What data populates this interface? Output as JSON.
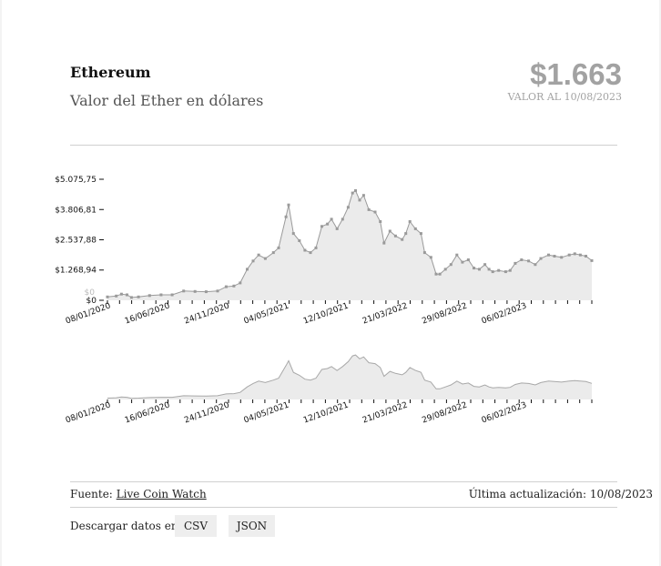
{
  "header": {
    "title": "Ethereum",
    "subtitle": "Valor del Ether en dólares",
    "big_value": "$1.663",
    "value_caption": "VALOR AL 10/08/2023"
  },
  "chart_data": [
    {
      "type": "area",
      "role": "main",
      "x_tick_labels": [
        "08/01/2020",
        "16/06/2020",
        "24/11/2020",
        "04/05/2021",
        "12/10/2021",
        "21/03/2022",
        "29/08/2022",
        "06/02/2023"
      ],
      "y_tick_labels": [
        "$0",
        "$1.268,94",
        "$2.537,88",
        "$3.806,81",
        "$5.075,75"
      ],
      "y_ticks": [
        0,
        1268.94,
        2537.88,
        3806.81,
        5075.75
      ],
      "ylim": [
        0,
        5075.75
      ],
      "xlim": [
        "2020-01-08",
        "2023-08-10"
      ],
      "overlap_label": "$0",
      "x": [
        "2020-01-08",
        "2020-02-01",
        "2020-02-15",
        "2020-03-01",
        "2020-03-13",
        "2020-04-01",
        "2020-05-01",
        "2020-06-01",
        "2020-07-01",
        "2020-08-01",
        "2020-09-01",
        "2020-10-01",
        "2020-11-01",
        "2020-11-24",
        "2020-12-15",
        "2021-01-01",
        "2021-01-20",
        "2021-02-05",
        "2021-02-20",
        "2021-03-10",
        "2021-04-01",
        "2021-04-15",
        "2021-05-05",
        "2021-05-12",
        "2021-05-25",
        "2021-06-10",
        "2021-06-25",
        "2021-07-10",
        "2021-07-25",
        "2021-08-10",
        "2021-08-25",
        "2021-09-05",
        "2021-09-20",
        "2021-10-05",
        "2021-10-20",
        "2021-11-01",
        "2021-11-09",
        "2021-11-20",
        "2021-12-01",
        "2021-12-15",
        "2022-01-01",
        "2022-01-15",
        "2022-01-25",
        "2022-02-10",
        "2022-02-25",
        "2022-03-15",
        "2022-03-25",
        "2022-04-05",
        "2022-04-20",
        "2022-05-05",
        "2022-05-15",
        "2022-06-01",
        "2022-06-15",
        "2022-06-25",
        "2022-07-10",
        "2022-07-25",
        "2022-08-10",
        "2022-08-25",
        "2022-09-10",
        "2022-09-25",
        "2022-10-10",
        "2022-10-25",
        "2022-11-05",
        "2022-11-15",
        "2022-12-01",
        "2022-12-20",
        "2023-01-01",
        "2023-01-15",
        "2023-02-01",
        "2023-02-20",
        "2023-03-10",
        "2023-03-25",
        "2023-04-15",
        "2023-05-01",
        "2023-05-20",
        "2023-06-10",
        "2023-06-25",
        "2023-07-10",
        "2023-07-25",
        "2023-08-10"
      ],
      "y": [
        140,
        180,
        260,
        230,
        120,
        140,
        200,
        230,
        230,
        390,
        370,
        360,
        390,
        570,
        600,
        730,
        1300,
        1650,
        1900,
        1750,
        2000,
        2200,
        3500,
        4000,
        2800,
        2500,
        2100,
        2000,
        2200,
        3100,
        3200,
        3400,
        3000,
        3400,
        3900,
        4500,
        4600,
        4200,
        4400,
        3800,
        3700,
        3300,
        2400,
        2900,
        2700,
        2550,
        2800,
        3300,
        3000,
        2800,
        2000,
        1800,
        1100,
        1100,
        1300,
        1500,
        1900,
        1600,
        1700,
        1350,
        1300,
        1500,
        1300,
        1200,
        1250,
        1200,
        1250,
        1550,
        1700,
        1650,
        1500,
        1750,
        1900,
        1850,
        1800,
        1900,
        1950,
        1900,
        1850,
        1663
      ]
    },
    {
      "type": "area",
      "role": "navigator",
      "x_tick_labels": [
        "08/01/2020",
        "16/06/2020",
        "24/11/2020",
        "04/05/2021",
        "12/10/2021",
        "21/03/2022",
        "29/08/2022",
        "06/02/2023"
      ],
      "same_series_as": "main"
    }
  ],
  "footer": {
    "source_label": "Fuente:",
    "source_link": "Live Coin Watch",
    "updated_text": "Última actualización: 10/08/2023",
    "download_label": "Descargar datos en:",
    "csv_button": "CSV",
    "json_button": "JSON"
  }
}
